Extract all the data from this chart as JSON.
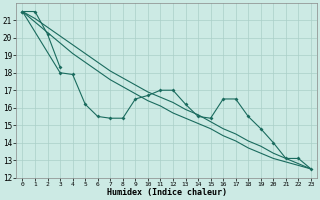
{
  "xlabel": "Humidex (Indice chaleur)",
  "bg_color": "#cceae4",
  "grid_color": "#aacfc8",
  "line_color": "#1a6b5e",
  "ylim": [
    12,
    22
  ],
  "xlim": [
    -0.5,
    23.5
  ],
  "yticks": [
    12,
    13,
    14,
    15,
    16,
    17,
    18,
    19,
    20,
    21
  ],
  "xticks": [
    0,
    1,
    2,
    3,
    4,
    5,
    6,
    7,
    8,
    9,
    10,
    11,
    12,
    13,
    14,
    15,
    16,
    17,
    18,
    19,
    20,
    21,
    22,
    23
  ],
  "line1_x": [
    0,
    1,
    2,
    3,
    4,
    5,
    6,
    7,
    8,
    9,
    10,
    11,
    12,
    13,
    14,
    15,
    16,
    17,
    18,
    19,
    20,
    21,
    22,
    23
  ],
  "line1_y": [
    21.5,
    21.1,
    20.6,
    20.1,
    19.6,
    19.1,
    18.6,
    18.1,
    17.7,
    17.3,
    16.9,
    16.6,
    16.3,
    15.9,
    15.6,
    15.2,
    14.8,
    14.5,
    14.1,
    13.8,
    13.4,
    13.1,
    12.8,
    12.5
  ],
  "line2_x": [
    0,
    1,
    2,
    3,
    4,
    5,
    6,
    7,
    8,
    9,
    10,
    11,
    12,
    13,
    14,
    15,
    16,
    17,
    18,
    19,
    20,
    21,
    22,
    23
  ],
  "line2_y": [
    21.5,
    20.9,
    20.3,
    19.7,
    19.1,
    18.6,
    18.1,
    17.6,
    17.2,
    16.8,
    16.4,
    16.1,
    15.7,
    15.4,
    15.1,
    14.8,
    14.4,
    14.1,
    13.7,
    13.4,
    13.1,
    12.9,
    12.7,
    12.5
  ],
  "line3_x": [
    0,
    1,
    2,
    3
  ],
  "line3_y": [
    21.5,
    21.5,
    20.2,
    18.3
  ],
  "line4_x": [
    0,
    3,
    4,
    5,
    6,
    7,
    8,
    9,
    10,
    11,
    12,
    13,
    14,
    15,
    16,
    17,
    18,
    19,
    20,
    21,
    22,
    23
  ],
  "line4_y": [
    21.5,
    18.0,
    17.9,
    16.2,
    15.5,
    15.4,
    15.4,
    16.5,
    16.7,
    17.0,
    17.0,
    16.2,
    15.5,
    15.4,
    16.5,
    16.5,
    15.5,
    14.8,
    14.0,
    13.1,
    13.1,
    12.5
  ]
}
